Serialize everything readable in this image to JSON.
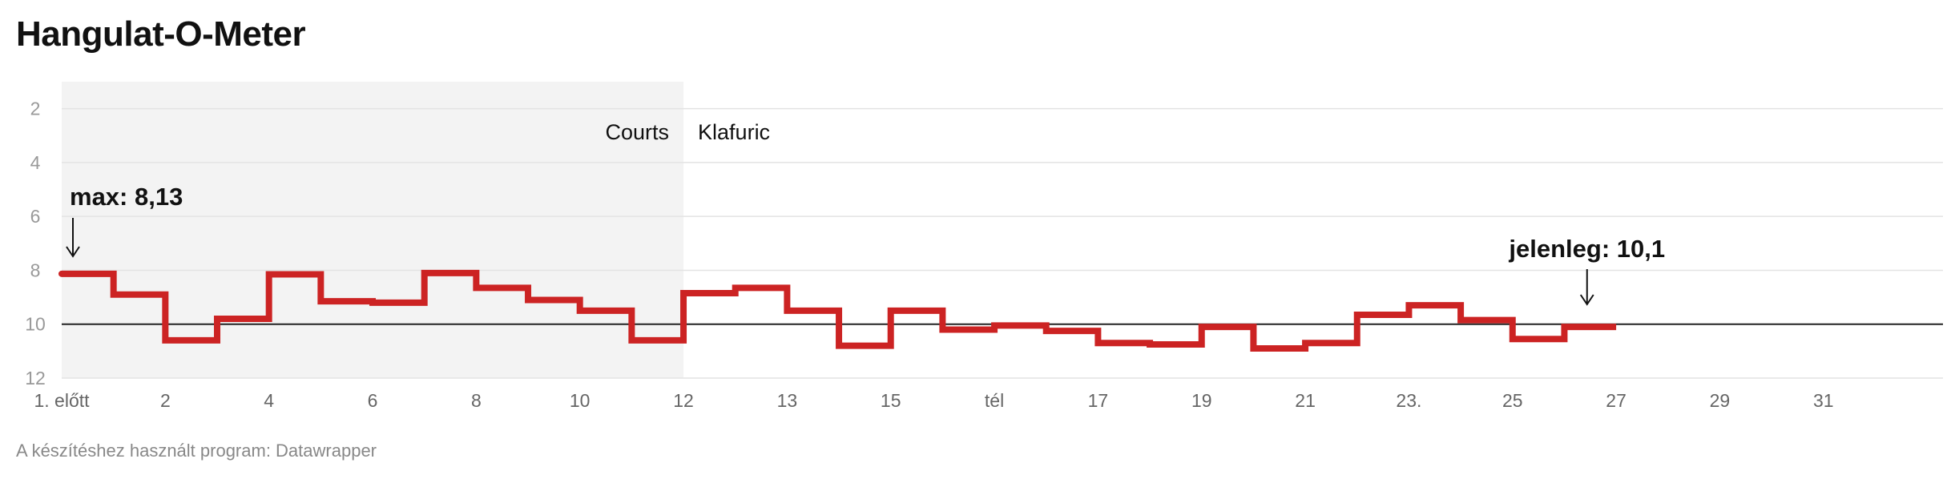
{
  "title": "Hangulat-O-Meter",
  "footer": "A készítéshez használt program: Datawrapper",
  "chart_data": {
    "type": "line",
    "step": true,
    "y_reversed": true,
    "ylim": [
      12,
      1
    ],
    "y_ticks": [
      "2",
      "4",
      "6",
      "8",
      "10",
      "12"
    ],
    "x_ticks": [
      "1. előtt",
      "2",
      "4",
      "6",
      "8",
      "10",
      "12",
      "13",
      "15",
      "tél",
      "17",
      "19",
      "21",
      "23.",
      "25",
      "27",
      "29",
      "31"
    ],
    "reference_line": 10,
    "regions": [
      {
        "label": "Courts",
        "from": 0,
        "to": 12,
        "shade": "#f3f3f3"
      },
      {
        "label": "Klafuric",
        "from": 12,
        "to": null
      }
    ],
    "series": [
      {
        "color": "#cc2323",
        "x": [
          0,
          1,
          2,
          3,
          4,
          5,
          6,
          7,
          8,
          9,
          10,
          11,
          12,
          13,
          14,
          15,
          16,
          17,
          18,
          19,
          20,
          21,
          22,
          23,
          24,
          25,
          26,
          27,
          28,
          29,
          30
        ],
        "values": [
          8.13,
          8.9,
          10.6,
          9.8,
          8.15,
          9.15,
          9.2,
          8.1,
          8.65,
          9.1,
          9.5,
          10.6,
          8.85,
          8.65,
          9.5,
          10.8,
          9.5,
          10.2,
          10.05,
          10.25,
          10.7,
          10.75,
          10.1,
          10.9,
          10.7,
          9.65,
          9.3,
          9.85,
          10.55,
          10.1,
          10.1
        ]
      }
    ],
    "annotations": [
      {
        "text": "max: 8,13",
        "x": 0,
        "y": 8.13
      },
      {
        "text": "jelenleg: 10,1",
        "x": 29.5,
        "y": 10.1
      }
    ]
  }
}
